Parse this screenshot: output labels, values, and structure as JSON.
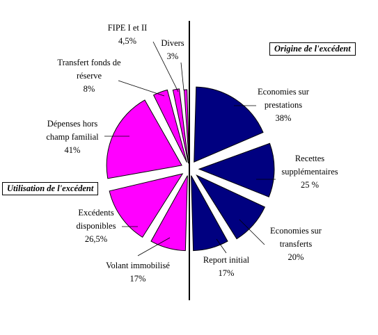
{
  "chart_data": {
    "type": "pie",
    "title": "",
    "groups": [
      {
        "name": "Origine de l'excédent",
        "color": "#000080",
        "slices": [
          {
            "label": [
              "Economies sur",
              "prestations"
            ],
            "value_text": "38%",
            "value": 38
          },
          {
            "label": [
              "Recettes",
              "supplémentaires"
            ],
            "value_text": "25 %",
            "value": 25
          },
          {
            "label": [
              "Economies sur",
              "transferts"
            ],
            "value_text": "20%",
            "value": 20
          },
          {
            "label": [
              "Report initial"
            ],
            "value_text": "17%",
            "value": 17
          }
        ]
      },
      {
        "name": "Utilisation de l'excédent",
        "color": "#ff00ff",
        "slices": [
          {
            "label": [
              "Volant immobilisé"
            ],
            "value_text": "17%",
            "value": 17
          },
          {
            "label": [
              "Excédents",
              "disponibles"
            ],
            "value_text": "26,5%",
            "value": 26.5
          },
          {
            "label": [
              "Dépenses hors",
              "champ familial"
            ],
            "value_text": "41%",
            "value": 41
          },
          {
            "label": [
              "Transfert fonds de",
              "réserve"
            ],
            "value_text": "8%",
            "value": 8
          },
          {
            "label": [
              "FIPE I et II"
            ],
            "value_text": "4,5%",
            "value": 4.5
          },
          {
            "label": [
              "Divers"
            ],
            "value_text": "3%",
            "value": 3
          }
        ]
      }
    ]
  }
}
